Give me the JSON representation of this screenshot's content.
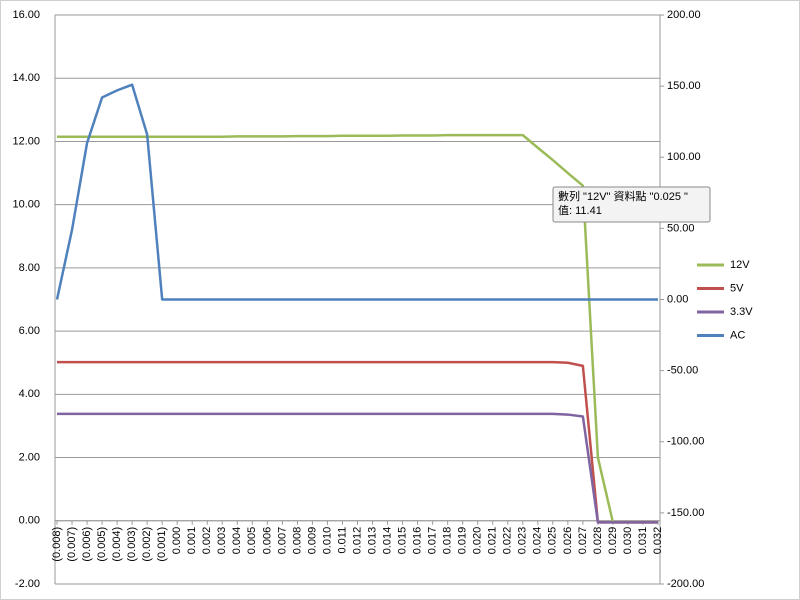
{
  "chart_data": {
    "type": "line",
    "categories": [
      "(0.008)",
      "(0.007)",
      "(0.006)",
      "(0.005)",
      "(0.004)",
      "(0.003)",
      "(0.002)",
      "(0.001)",
      "0.000",
      "0.001",
      "0.002",
      "0.003",
      "0.004",
      "0.005",
      "0.006",
      "0.007",
      "0.008",
      "0.009",
      "0.010",
      "0.011",
      "0.012",
      "0.013",
      "0.014",
      "0.015",
      "0.016",
      "0.017",
      "0.018",
      "0.019",
      "0.020",
      "0.021",
      "0.022",
      "0.023",
      "0.024",
      "0.025",
      "0.026",
      "0.027",
      "0.028",
      "0.029",
      "0.030",
      "0.031",
      "0.032"
    ],
    "series": [
      {
        "name": "12V",
        "color": "#9bbb59",
        "values": [
          12.15,
          12.15,
          12.15,
          12.15,
          12.15,
          12.15,
          12.15,
          12.15,
          12.15,
          12.15,
          12.15,
          12.15,
          12.16,
          12.16,
          12.16,
          12.16,
          12.17,
          12.17,
          12.17,
          12.18,
          12.18,
          12.18,
          12.18,
          12.19,
          12.19,
          12.19,
          12.2,
          12.2,
          12.2,
          12.2,
          12.2,
          12.2,
          11.8,
          11.41,
          11.0,
          10.6,
          2.0,
          -0.05,
          -0.05,
          -0.05,
          -0.05
        ]
      },
      {
        "name": "5V",
        "color": "#c0504d",
        "values": [
          5.02,
          5.02,
          5.02,
          5.02,
          5.02,
          5.02,
          5.02,
          5.02,
          5.02,
          5.02,
          5.02,
          5.02,
          5.02,
          5.02,
          5.02,
          5.02,
          5.02,
          5.02,
          5.02,
          5.02,
          5.02,
          5.02,
          5.02,
          5.02,
          5.02,
          5.02,
          5.02,
          5.02,
          5.02,
          5.02,
          5.02,
          5.02,
          5.02,
          5.02,
          5.0,
          4.9,
          -0.05,
          -0.05,
          -0.05,
          -0.05,
          -0.05
        ]
      },
      {
        "name": "3.3V",
        "color": "#8064a2",
        "values": [
          3.38,
          3.38,
          3.38,
          3.38,
          3.38,
          3.38,
          3.38,
          3.38,
          3.38,
          3.38,
          3.38,
          3.38,
          3.38,
          3.38,
          3.38,
          3.38,
          3.38,
          3.38,
          3.38,
          3.38,
          3.38,
          3.38,
          3.38,
          3.38,
          3.38,
          3.38,
          3.38,
          3.38,
          3.38,
          3.38,
          3.38,
          3.38,
          3.38,
          3.38,
          3.36,
          3.3,
          -0.05,
          -0.05,
          -0.05,
          -0.05,
          -0.05
        ]
      },
      {
        "name": "AC",
        "color": "#4f81bd",
        "axis": "y2",
        "values": [
          0,
          49,
          110,
          142,
          147,
          151,
          116,
          0,
          0,
          0,
          0,
          0,
          0,
          0,
          0,
          0,
          0,
          0,
          0,
          0,
          0,
          0,
          0,
          0,
          0,
          0,
          0,
          0,
          0,
          0,
          0,
          0,
          0,
          0,
          0,
          0,
          0,
          0,
          0,
          0,
          0
        ]
      }
    ],
    "ylim": [
      -2,
      16
    ],
    "yticks": [
      {
        "value": -2,
        "label": "-2.00"
      },
      {
        "value": 0,
        "label": "0.00"
      },
      {
        "value": 2,
        "label": "2.00"
      },
      {
        "value": 4,
        "label": "4.00"
      },
      {
        "value": 6,
        "label": "6.00"
      },
      {
        "value": 8,
        "label": "8.00"
      },
      {
        "value": 10,
        "label": "10.00"
      },
      {
        "value": 12,
        "label": "12.00"
      },
      {
        "value": 14,
        "label": "14.00"
      },
      {
        "value": 16,
        "label": "16.00"
      }
    ],
    "y2lim": [
      -200,
      200
    ],
    "y2ticks": [
      {
        "value": -200,
        "label": "-200.00"
      },
      {
        "value": -150,
        "label": "-150.00"
      },
      {
        "value": -100,
        "label": "-100.00"
      },
      {
        "value": -50,
        "label": "-50.00"
      },
      {
        "value": 0,
        "label": "0.00"
      },
      {
        "value": 50,
        "label": "50.00"
      },
      {
        "value": 100,
        "label": "100.00"
      },
      {
        "value": 150,
        "label": "150.00"
      },
      {
        "value": 200,
        "label": "200.00"
      }
    ],
    "grid": true,
    "legend": "right",
    "tooltip": [
      "數列 \"12V\" 資料點 \"0.025 \"",
      "值: 11.41"
    ]
  }
}
